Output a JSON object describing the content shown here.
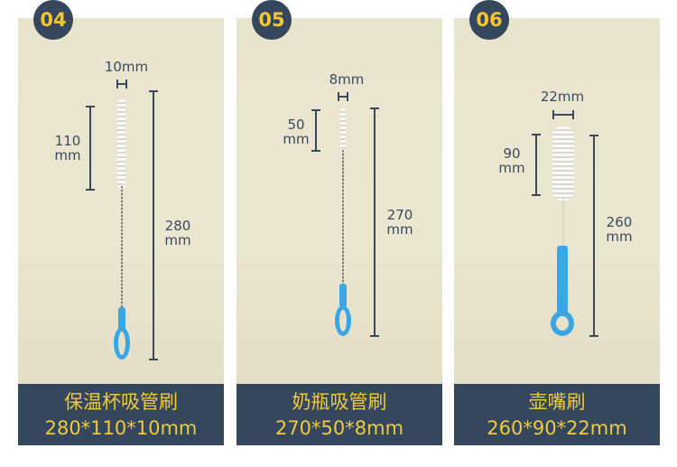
{
  "colors": {
    "band": "#34475c",
    "text_gold": "#f0c93f",
    "background": "#e9e4cd",
    "handle": "#3aa6e3"
  },
  "products": [
    {
      "badge": "04",
      "width": "10mm",
      "head_value": "110",
      "head_unit": "mm",
      "length_value": "280",
      "length_unit": "mm",
      "name": "保温杯吸管刷",
      "dims": "280*110*10mm"
    },
    {
      "badge": "05",
      "width": "8mm",
      "head_value": "50",
      "head_unit": "mm",
      "length_value": "270",
      "length_unit": "mm",
      "name": "奶瓶吸管刷",
      "dims": "270*50*8mm"
    },
    {
      "badge": "06",
      "width": "22mm",
      "head_value": "90",
      "head_unit": "mm",
      "length_value": "260",
      "length_unit": "mm",
      "name": "壶嘴刷",
      "dims": "260*90*22mm"
    }
  ]
}
